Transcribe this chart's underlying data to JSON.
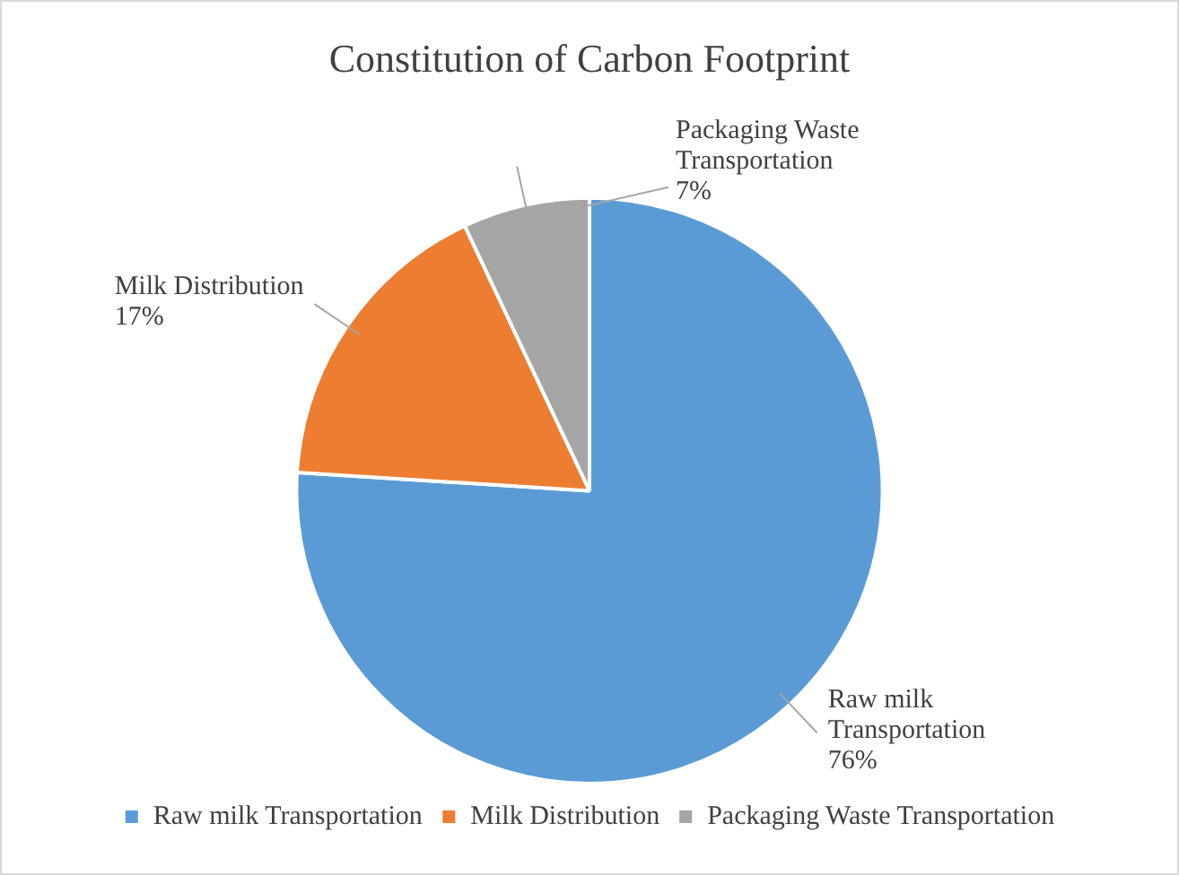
{
  "chart_data": {
    "type": "pie",
    "title": "Constitution of Carbon Footprint",
    "categories": [
      "Raw milk Transportation",
      "Milk Distribution",
      "Packaging Waste Transportation"
    ],
    "values": [
      76,
      17,
      7
    ],
    "colors": [
      "#5b9bd5",
      "#ed7d31",
      "#a5a5a5"
    ],
    "value_labels": [
      "76%",
      "17%",
      "7%"
    ],
    "legend": "bottom"
  }
}
